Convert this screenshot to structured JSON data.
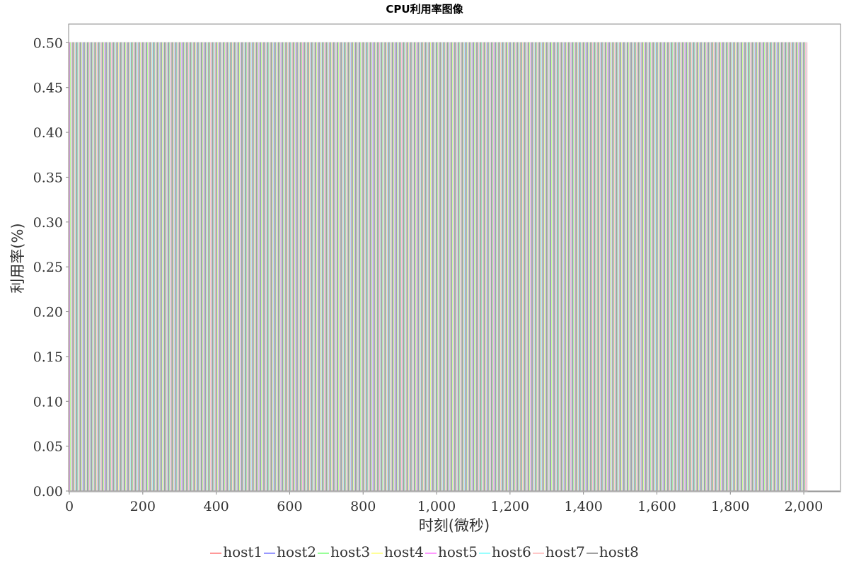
{
  "chart_data": {
    "type": "line",
    "title": "CPU利用率图像",
    "xlabel": "时刻(微秒)",
    "ylabel": "利用率(%)",
    "xlim": [
      0,
      2100
    ],
    "ylim": [
      0,
      0.52
    ],
    "x_ticks": [
      "0",
      "200",
      "400",
      "600",
      "800",
      "1,000",
      "1,200",
      "1,400",
      "1,600",
      "1,800",
      "2,000"
    ],
    "y_ticks": [
      "0.00",
      "0.05",
      "0.10",
      "0.15",
      "0.20",
      "0.25",
      "0.30",
      "0.35",
      "0.40",
      "0.45",
      "0.50"
    ],
    "grid": false,
    "legend_position": "bottom",
    "pattern": "each host alternates between 0.00 and 0.50 in short pulses over 0–2,000 microseconds",
    "pulse_level": 0.5,
    "x_end": 2010,
    "series": [
      {
        "name": "host1",
        "color": "#ff9999"
      },
      {
        "name": "host2",
        "color": "#9999ff"
      },
      {
        "name": "host3",
        "color": "#99ff99"
      },
      {
        "name": "host4",
        "color": "#ffff99"
      },
      {
        "name": "host5",
        "color": "#ff99ff"
      },
      {
        "name": "host6",
        "color": "#99ffff"
      },
      {
        "name": "host7",
        "color": "#ffc8c8"
      },
      {
        "name": "host8",
        "color": "#a0a0a0"
      }
    ]
  }
}
